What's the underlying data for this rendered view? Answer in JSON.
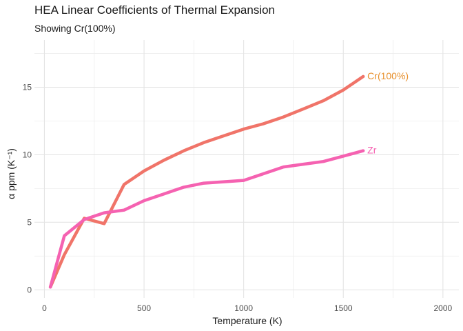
{
  "chart_data": {
    "type": "line",
    "title": "HEA Linear Coefficients of Thermal Expansion",
    "subtitle": "Showing Cr(100%)",
    "xlabel": "Temperature (K)",
    "ylabel": "α ppm (K⁻¹)",
    "xlim": [
      -50,
      2080
    ],
    "ylim": [
      -0.6,
      18.5
    ],
    "xticks": [
      0,
      500,
      1000,
      1500,
      2000
    ],
    "yticks": [
      0,
      5,
      10,
      15
    ],
    "x_minor": [
      250,
      750,
      1250,
      1750
    ],
    "y_minor": [
      2.5,
      7.5,
      12.5,
      17.5
    ],
    "grid": true,
    "legend": "direct labels at line ends",
    "series": [
      {
        "name": "Cr(100%)",
        "line_color": "#f07469",
        "label_color": "#e8902c",
        "x": [
          30,
          100,
          200,
          300,
          400,
          500,
          600,
          700,
          800,
          900,
          1000,
          1100,
          1200,
          1300,
          1400,
          1500,
          1600
        ],
        "y": [
          0.2,
          2.6,
          5.3,
          4.9,
          7.8,
          8.8,
          9.6,
          10.3,
          10.9,
          11.4,
          11.9,
          12.3,
          12.8,
          13.4,
          14.0,
          14.8,
          15.8
        ]
      },
      {
        "name": "Zr",
        "line_color": "#f562b1",
        "label_color": "#f562b1",
        "x": [
          30,
          100,
          200,
          300,
          400,
          500,
          600,
          700,
          800,
          900,
          1000,
          1100,
          1200,
          1300,
          1400,
          1500,
          1600
        ],
        "y": [
          0.2,
          4.0,
          5.2,
          5.7,
          5.9,
          6.6,
          7.1,
          7.6,
          7.9,
          8.0,
          8.1,
          8.6,
          9.1,
          9.3,
          9.5,
          9.9,
          10.3
        ]
      }
    ]
  }
}
